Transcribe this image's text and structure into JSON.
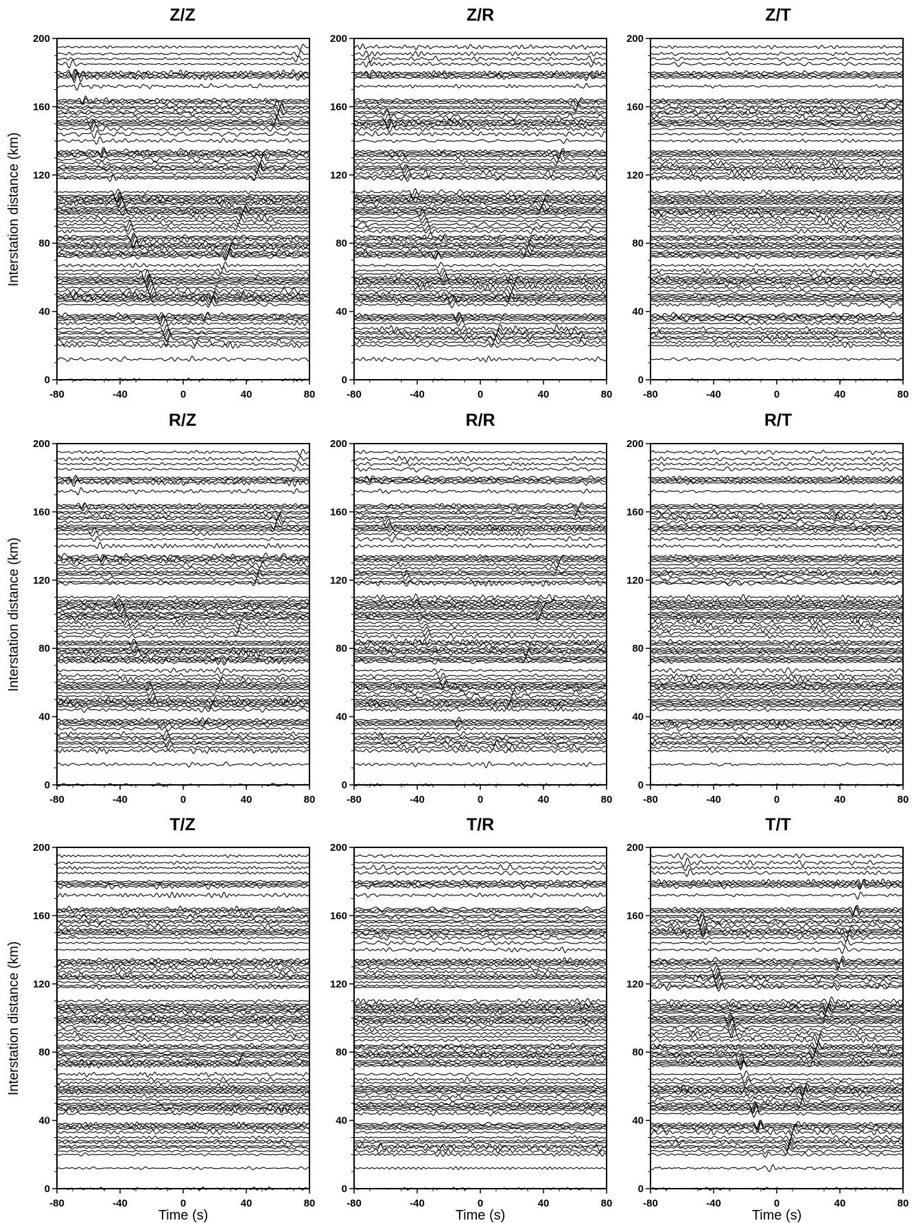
{
  "figure": {
    "ylabel": "Interstation distance (km)",
    "xlabel": "Time (s)"
  },
  "chart_data": [
    {
      "type": "line",
      "title": "Z/Z",
      "xlabel": "",
      "ylabel": "Interstation distance (km)",
      "xlim": [
        -80,
        80
      ],
      "ylim": [
        0,
        200
      ],
      "xticks": [
        -80,
        -40,
        0,
        40,
        80
      ],
      "yticks": [
        0,
        40,
        80,
        120,
        160,
        200
      ],
      "signal_velocity_km_s": 2.6,
      "signal_strength": 1.0
    },
    {
      "type": "line",
      "title": "Z/R",
      "xlabel": "",
      "ylabel": "",
      "xlim": [
        -80,
        80
      ],
      "ylim": [
        0,
        200
      ],
      "xticks": [
        -80,
        -40,
        0,
        40,
        80
      ],
      "yticks": [
        0,
        40,
        80,
        120,
        160,
        200
      ],
      "signal_velocity_km_s": 2.6,
      "signal_strength": 0.8
    },
    {
      "type": "line",
      "title": "Z/T",
      "xlabel": "",
      "ylabel": "",
      "xlim": [
        -80,
        80
      ],
      "ylim": [
        0,
        200
      ],
      "xticks": [
        -80,
        -40,
        0,
        40,
        80
      ],
      "yticks": [
        0,
        40,
        80,
        120,
        160,
        200
      ],
      "signal_velocity_km_s": 0,
      "signal_strength": 0
    },
    {
      "type": "line",
      "title": "R/Z",
      "xlabel": "",
      "ylabel": "Interstation distance (km)",
      "xlim": [
        -80,
        80
      ],
      "ylim": [
        0,
        200
      ],
      "xticks": [
        -80,
        -40,
        0,
        40,
        80
      ],
      "yticks": [
        0,
        40,
        80,
        120,
        160,
        200
      ],
      "signal_velocity_km_s": 2.6,
      "signal_strength": 0.7
    },
    {
      "type": "line",
      "title": "R/R",
      "xlabel": "",
      "ylabel": "",
      "xlim": [
        -80,
        80
      ],
      "ylim": [
        0,
        200
      ],
      "xticks": [
        -80,
        -40,
        0,
        40,
        80
      ],
      "yticks": [
        0,
        40,
        80,
        120,
        160,
        200
      ],
      "signal_velocity_km_s": 2.6,
      "signal_strength": 0.6
    },
    {
      "type": "line",
      "title": "R/T",
      "xlabel": "",
      "ylabel": "",
      "xlim": [
        -80,
        80
      ],
      "ylim": [
        0,
        200
      ],
      "xticks": [
        -80,
        -40,
        0,
        40,
        80
      ],
      "yticks": [
        0,
        40,
        80,
        120,
        160,
        200
      ],
      "signal_velocity_km_s": 0,
      "signal_strength": 0
    },
    {
      "type": "line",
      "title": "T/Z",
      "xlabel": "Time (s)",
      "ylabel": "Interstation distance (km)",
      "xlim": [
        -80,
        80
      ],
      "ylim": [
        0,
        200
      ],
      "xticks": [
        -80,
        -40,
        0,
        40,
        80
      ],
      "yticks": [
        0,
        40,
        80,
        120,
        160,
        200
      ],
      "signal_velocity_km_s": 0,
      "signal_strength": 0
    },
    {
      "type": "line",
      "title": "T/R",
      "xlabel": "Time (s)",
      "ylabel": "",
      "xlim": [
        -80,
        80
      ],
      "ylim": [
        0,
        200
      ],
      "xticks": [
        -80,
        -40,
        0,
        40,
        80
      ],
      "yticks": [
        0,
        40,
        80,
        120,
        160,
        200
      ],
      "signal_velocity_km_s": 0,
      "signal_strength": 0
    },
    {
      "type": "line",
      "title": "T/T",
      "xlabel": "Time (s)",
      "ylabel": "",
      "xlim": [
        -80,
        80
      ],
      "ylim": [
        0,
        200
      ],
      "xticks": [
        -80,
        -40,
        0,
        40,
        80
      ],
      "yticks": [
        0,
        40,
        80,
        120,
        160,
        200
      ],
      "signal_velocity_km_s": 3.3,
      "signal_strength": 1.0
    }
  ],
  "trace_distances_km": [
    0,
    12,
    20,
    22,
    24,
    25,
    27,
    28,
    30,
    33,
    35,
    36,
    37,
    38,
    44,
    46,
    47,
    48,
    49,
    50,
    52,
    54,
    56,
    57,
    58,
    59,
    60,
    62,
    64,
    67,
    72,
    73,
    74,
    75,
    77,
    78,
    79,
    80,
    82,
    83,
    84,
    87,
    89,
    91,
    93,
    95,
    97,
    98,
    99,
    100,
    101,
    103,
    104,
    105,
    106,
    107,
    108,
    110,
    118,
    119,
    121,
    123,
    124,
    125,
    127,
    129,
    131,
    132,
    133,
    134,
    140,
    144,
    147,
    149,
    150,
    151,
    152,
    154,
    156,
    157,
    159,
    160,
    162,
    163,
    164,
    172,
    177,
    178,
    179,
    180,
    185,
    188,
    191,
    195
  ]
}
